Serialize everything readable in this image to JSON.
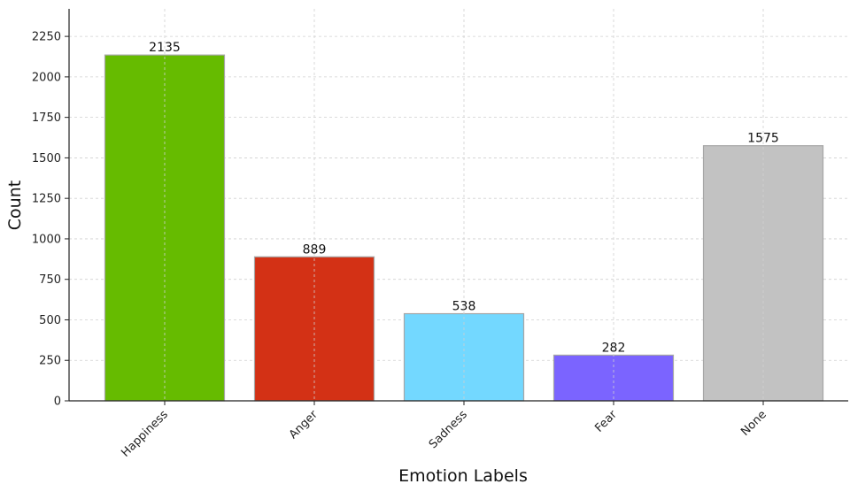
{
  "chart_data": {
    "type": "bar",
    "title": "",
    "xlabel": "Emotion Labels",
    "ylabel": "Count",
    "categories": [
      "Happiness",
      "Anger",
      "Sadness",
      "Fear",
      "None"
    ],
    "values": [
      2135,
      889,
      538,
      282,
      1575
    ],
    "data_labels": [
      "2135",
      "889",
      "538",
      "282",
      "1575"
    ],
    "colors": [
      "#66bb00",
      "#d33115",
      "#73d8ff",
      "#7b64ff",
      "#c2c2c2"
    ],
    "ylim": [
      0,
      2420
    ],
    "yticks": [
      0,
      250,
      500,
      750,
      1000,
      1250,
      1500,
      1750,
      2000,
      2250
    ],
    "ytick_labels": [
      "0",
      "250",
      "500",
      "750",
      "1000",
      "1250",
      "1500",
      "1750",
      "2000",
      "2250"
    ],
    "grid": true,
    "xtick_rotation": "45 degrees"
  }
}
